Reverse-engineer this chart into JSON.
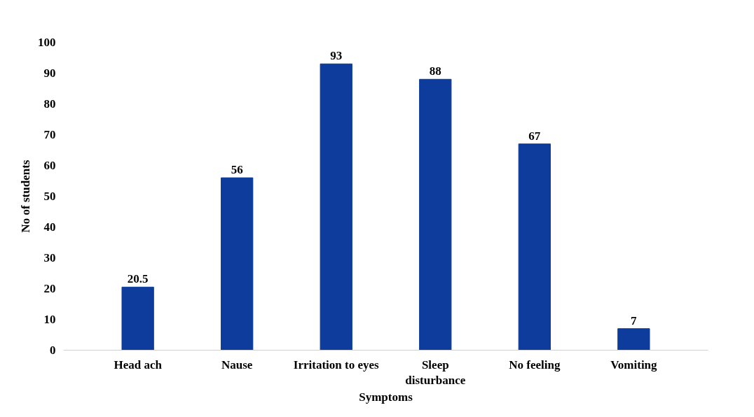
{
  "chart_data": {
    "type": "bar",
    "xlabel": "Symptoms",
    "ylabel": "No of students",
    "categories": [
      "Head ach",
      "Nause",
      "Irritation to eyes",
      "Sleep\ndisturbance",
      "No feeling",
      "Vomiting"
    ],
    "values": [
      20.5,
      56,
      93,
      88,
      67,
      7
    ],
    "color": "#0d3c9c",
    "ylim": [
      0,
      100
    ],
    "yticks": [
      0,
      10,
      20,
      30,
      40,
      50,
      60,
      70,
      80,
      90,
      100
    ],
    "grid": false,
    "data_labels": true
  }
}
